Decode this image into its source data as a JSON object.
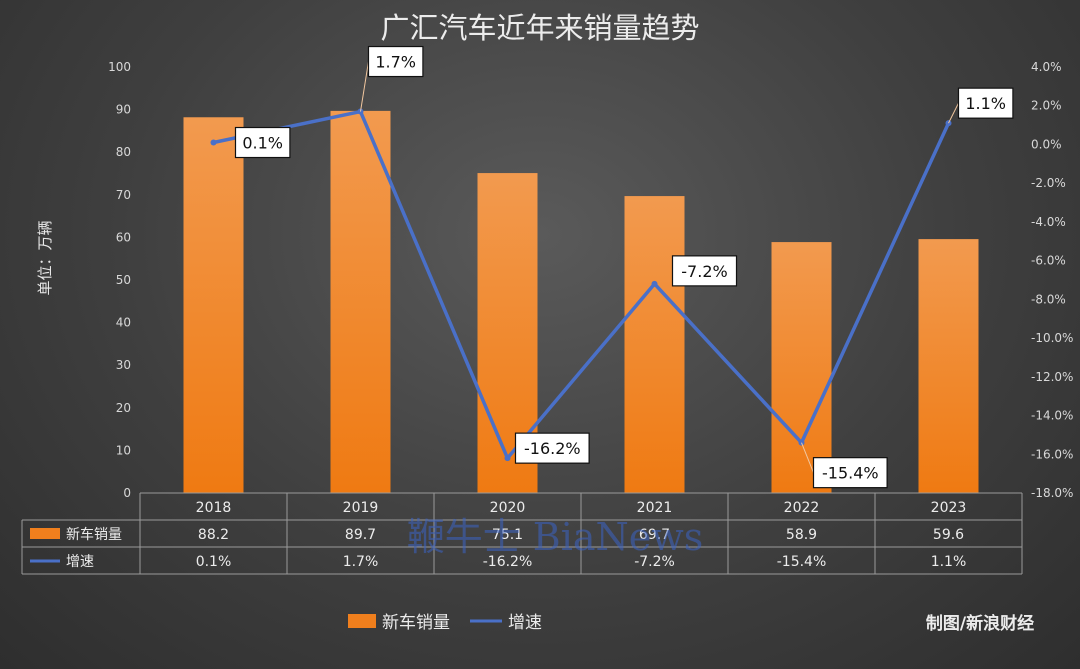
{
  "chart_data": {
    "type": "bar",
    "title": "广汇汽车近年来销量趋势",
    "ylabel": "单位：万辆",
    "categories": [
      "2018",
      "2019",
      "2020",
      "2021",
      "2022",
      "2023"
    ],
    "ylim": [
      0,
      100
    ],
    "yticks": [
      "0",
      "10",
      "20",
      "30",
      "40",
      "50",
      "60",
      "70",
      "80",
      "90",
      "100"
    ],
    "y2lim": [
      -18,
      4
    ],
    "y2ticks": [
      "4.0%",
      "2.0%",
      "0.0%",
      "-2.0%",
      "-4.0%",
      "-6.0%",
      "-8.0%",
      "-10.0%",
      "-12.0%",
      "-14.0%",
      "-16.0%",
      "-18.0%"
    ],
    "series": [
      {
        "name": "新车销量",
        "type": "bar",
        "axis": "left",
        "values": [
          88.2,
          89.7,
          75.1,
          69.7,
          58.9,
          59.6
        ],
        "table_labels": [
          "88.2",
          "89.7",
          "75.1",
          "69.7",
          "58.9",
          "59.6"
        ],
        "color": "#f07f1d"
      },
      {
        "name": "增速",
        "type": "line",
        "axis": "right",
        "values": [
          0.1,
          1.7,
          -16.2,
          -7.2,
          -15.4,
          1.1
        ],
        "table_labels": [
          "0.1%",
          "1.7%",
          "-16.2%",
          "-7.2%",
          "-15.4%",
          "1.1%"
        ],
        "data_labels": [
          "0.1%",
          "1.7%",
          "-16.2%",
          "-7.2%",
          "-15.4%",
          "1.1%"
        ],
        "color": "#4a70c8"
      }
    ],
    "grid": false,
    "legend": "bottom-center",
    "data_table": true
  },
  "credit": "制图/新浪财经",
  "watermark": "鞭牛士 BiaNews"
}
